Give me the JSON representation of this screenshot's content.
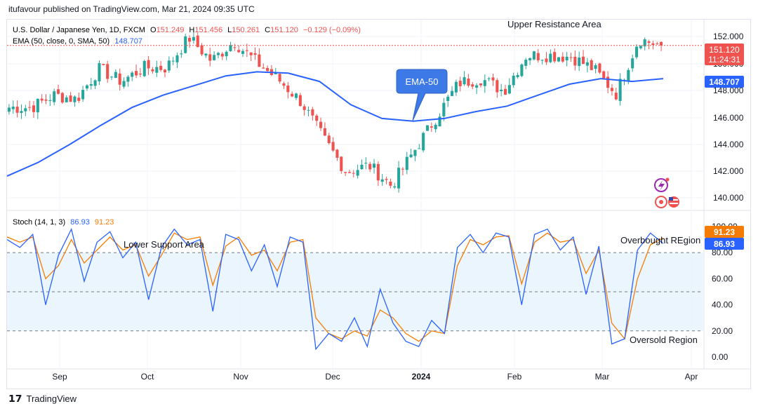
{
  "publisher_line": "itufavour published on TradingView.com, Mar 21, 2024 09:35 UTC",
  "footer": {
    "logo_text": "TradingView",
    "logo_icon": "tradingview-logo-icon"
  },
  "colors": {
    "up": "#26a69a",
    "down": "#ef5350",
    "ema": "#2962ff",
    "stoch_k": "#2962ff",
    "stoch_d": "#f57c00",
    "band_fill": "#e3f2fd",
    "callout": "#3d7ae8"
  },
  "price_pane": {
    "header": {
      "symbol": "U.S. Dollar / Japanese Yen, 1D, FXCM",
      "o_label": "O",
      "o": "151.249",
      "h_label": "H",
      "h": "151.456",
      "l_label": "L",
      "l": "150.261",
      "c_label": "C",
      "c": "151.120",
      "change": "−0.129 (−0.09%)"
    },
    "ema_legend": {
      "label": "EMA (50, close, 0, SMA, 50)",
      "value": "148.707"
    },
    "axis_ticks": [
      "152.000",
      "150.000",
      "148.000",
      "146.000",
      "144.000",
      "142.000",
      "140.000"
    ],
    "price_tag": {
      "value": "151.120",
      "countdown": "11:24:31"
    },
    "ema_tag": "148.707",
    "annotations": {
      "upper_resistance": "Upper Resistance Area",
      "ema_callout": "EMA-50"
    }
  },
  "stoch_pane": {
    "legend": {
      "label": "Stoch (14, 1, 3)",
      "k": "86.93",
      "d": "91.23"
    },
    "axis_ticks": [
      "100.00",
      "80.00",
      "60.00",
      "40.00",
      "20.00",
      "0.00"
    ],
    "tags": {
      "d": "91.23",
      "k": "86.93"
    },
    "annotations": {
      "lower_support": "Lower Support Area",
      "overbought": "Overbought REgion",
      "oversold": "Oversold Region"
    }
  },
  "time_axis": [
    "Sep",
    "Oct",
    "Nov",
    "Dec",
    "2024",
    "Feb",
    "Mar",
    "Apr"
  ],
  "chart_data": {
    "type": "candlestick",
    "title": "U.S. Dollar / Japanese Yen, 1D, FXCM",
    "ylim": [
      139.1,
      153.0
    ],
    "ohlc_anchors": [
      [
        144.5,
        146.6
      ],
      [
        145.8,
        146.6
      ],
      [
        146.2,
        147.5
      ],
      [
        147.5,
        147.2
      ],
      [
        147.6,
        149.4
      ],
      [
        149.5,
        148.5
      ],
      [
        149.4,
        149.5
      ],
      [
        149.9,
        149.5
      ],
      [
        149.8,
        151.7
      ],
      [
        150.3,
        150.0
      ],
      [
        150.1,
        151.4
      ],
      [
        150.1,
        149.9
      ],
      [
        149.6,
        148.6
      ],
      [
        148.2,
        147.0
      ],
      [
        146.3,
        144.3
      ],
      [
        146.7,
        141.9
      ],
      [
        142.2,
        142.4
      ],
      [
        140.9,
        140.9
      ],
      [
        142.6,
        143.4
      ],
      [
        145.4,
        145.9
      ],
      [
        147.4,
        148.4
      ],
      [
        149.4,
        148.7
      ],
      [
        149.1,
        147.8
      ],
      [
        149.8,
        150.4
      ],
      [
        150.7,
        150.4
      ],
      [
        150.5,
        150.3
      ],
      [
        149.1,
        149.4
      ],
      [
        146.9,
        147.6
      ],
      [
        149.2,
        151.6
      ],
      [
        151.2,
        151.1
      ]
    ],
    "ema50": {
      "name": "EMA (50, close, 0, SMA, 50)",
      "values": [
        141.6,
        142.6,
        143.9,
        145.3,
        146.6,
        147.5,
        148.2,
        148.9,
        149.2,
        149.1,
        148.5,
        146.8,
        145.8,
        145.6,
        145.8,
        146.3,
        146.7,
        147.5,
        148.3,
        148.7,
        148.5,
        148.7
      ]
    },
    "stoch_k": [
      90,
      84,
      94,
      40,
      78,
      98,
      58,
      88,
      96,
      76,
      88,
      44,
      84,
      98,
      86,
      90,
      35,
      94,
      90,
      66,
      86,
      54,
      92,
      88,
      6,
      18,
      12,
      30,
      8,
      52,
      26,
      12,
      8,
      28,
      18,
      84,
      94,
      80,
      95,
      92,
      40,
      94,
      98,
      82,
      92,
      48,
      85,
      10,
      14,
      82,
      95,
      86.93
    ],
    "stoch_d": [
      92,
      88,
      92,
      60,
      70,
      90,
      72,
      82,
      92,
      82,
      86,
      62,
      78,
      95,
      90,
      92,
      55,
      85,
      92,
      78,
      82,
      66,
      88,
      90,
      30,
      18,
      14,
      20,
      16,
      36,
      30,
      18,
      12,
      20,
      18,
      70,
      90,
      86,
      92,
      93,
      56,
      88,
      95,
      88,
      90,
      64,
      82,
      26,
      14,
      60,
      86,
      91.23
    ],
    "stoch_ylim": [
      0,
      100
    ],
    "stoch_bands": [
      20,
      50,
      80
    ],
    "x_labels": [
      "Sep",
      "Oct",
      "Nov",
      "Dec",
      "2024",
      "Feb",
      "Mar",
      "Apr"
    ],
    "last_close": 151.12
  }
}
